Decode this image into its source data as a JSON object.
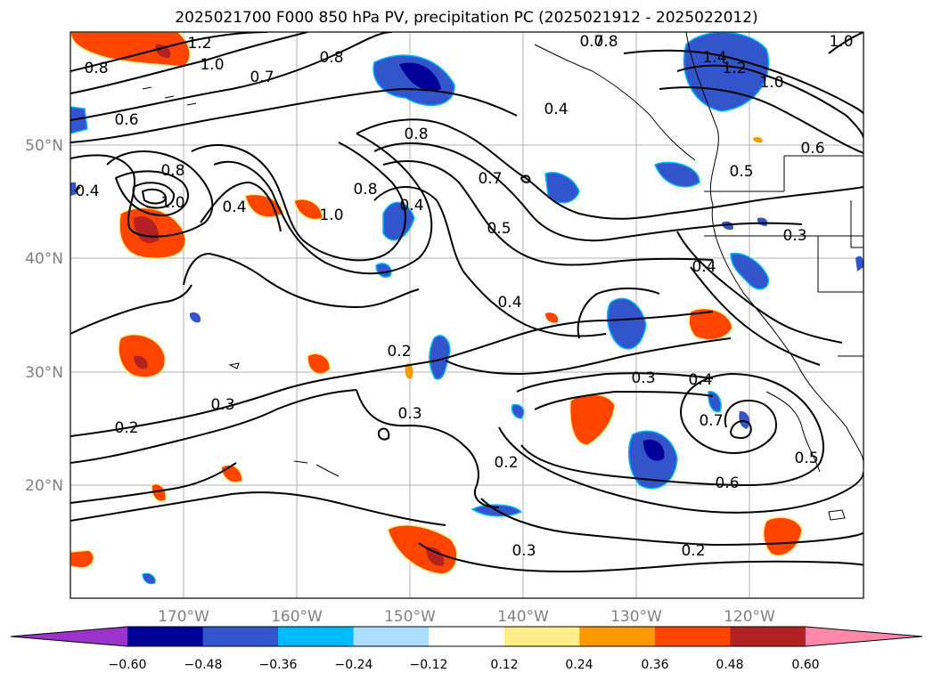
{
  "title": "2025021700 F000 850 hPa PV, precipitation PC (2025021912 - 2025022012)",
  "lon_ticks": [
    "170°W",
    "160°W",
    "150°W",
    "140°W",
    "130°W",
    "120°W"
  ],
  "lat_ticks": [
    "50°N",
    "40°N",
    "30°N",
    "20°N"
  ],
  "contour_labels": [
    "1.2",
    "1.0",
    "0.8",
    "0.7",
    "0.8",
    "0.6",
    "0.8",
    "1.0",
    "0.4",
    "0.8",
    "0.7",
    "0.8",
    "0.4",
    "1.0",
    "0.7",
    "0.5",
    "0.4",
    "0.4",
    "0.2",
    "0.3",
    "0.3",
    "0.2",
    "0.2",
    "0.3",
    "0.3",
    "0.4",
    "0.7",
    "0.6",
    "0.5",
    "0.2",
    "0.4",
    "0.5",
    "0.3",
    "0.4",
    "1.4",
    "1.2",
    "1.0",
    "0.6",
    "1.0",
    "0.8"
  ],
  "colorbar": {
    "ticks": [
      "−0.60",
      "−0.48",
      "−0.36",
      "−0.24",
      "−0.12",
      "0.12",
      "0.24",
      "0.36",
      "0.48",
      "0.60"
    ],
    "colors": [
      "#9933cc",
      "#000099",
      "#3355cc",
      "#00bbff",
      "#aaddff",
      "#ffffff",
      "#ffee88",
      "#ff9900",
      "#ff4400",
      "#b22222",
      "#ff88aa"
    ]
  }
}
